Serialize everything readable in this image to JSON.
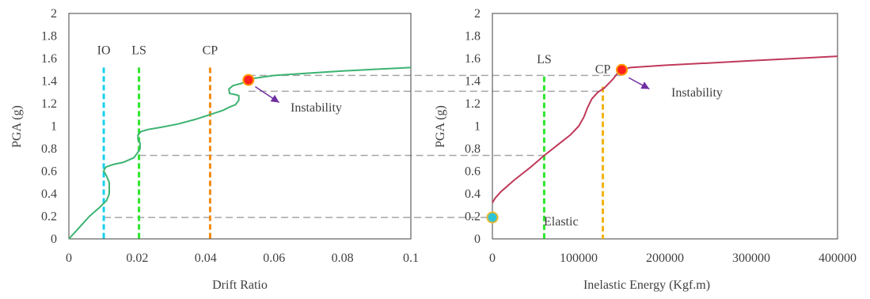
{
  "chart_data": [
    {
      "type": "line",
      "xlabel": "Drift Ratio",
      "ylabel": "PGA (g)",
      "xlim": [
        0,
        0.1
      ],
      "ylim": [
        0,
        2
      ],
      "xticks": [
        0,
        0.02,
        0.04,
        0.06,
        0.08,
        0.1
      ],
      "xtick_labels": [
        "0",
        "0.02",
        "0.04",
        "0.06",
        "0.08",
        "0.1"
      ],
      "yticks": [
        0,
        0.2,
        0.4,
        0.6,
        0.8,
        1,
        1.2,
        1.4,
        1.6,
        1.8,
        2
      ],
      "ytick_labels": [
        "0",
        "0.2",
        "0.4",
        "0.6",
        "0.8",
        "1",
        "1.2",
        "1.4",
        "1.6",
        "1.8",
        "2"
      ],
      "grid": false,
      "series": [
        {
          "color": "#3cb371",
          "x": [
            0,
            0.003,
            0.006,
            0.009,
            0.011,
            0.0118,
            0.0118,
            0.011,
            0.0102,
            0.0104,
            0.011,
            0.013,
            0.016,
            0.019,
            0.02,
            0.0208,
            0.0208,
            0.0202,
            0.0202,
            0.021,
            0.023,
            0.027,
            0.032,
            0.037,
            0.041,
            0.045,
            0.047,
            0.0487,
            0.0497,
            0.0497,
            0.0487,
            0.047,
            0.0468,
            0.048,
            0.0505,
            0.053,
            0.06,
            0.07,
            0.08,
            0.09,
            0.1
          ],
          "y": [
            0,
            0.1,
            0.2,
            0.28,
            0.34,
            0.4,
            0.5,
            0.56,
            0.6,
            0.62,
            0.64,
            0.66,
            0.68,
            0.72,
            0.76,
            0.8,
            0.85,
            0.88,
            0.92,
            0.95,
            0.97,
            0.99,
            1.02,
            1.06,
            1.1,
            1.14,
            1.17,
            1.19,
            1.23,
            1.27,
            1.28,
            1.29,
            1.33,
            1.36,
            1.38,
            1.42,
            1.45,
            1.47,
            1.49,
            1.505,
            1.52
          ]
        }
      ],
      "vlines": [
        {
          "label": "IO",
          "x": 0.0102,
          "y_top": 1.52,
          "color": "#1ad1f0"
        },
        {
          "label": "LS",
          "x": 0.0205,
          "y_top": 1.52,
          "color": "#2ee62e"
        },
        {
          "label": "CP",
          "x": 0.0413,
          "y_top": 1.52,
          "color": "#f28b13"
        }
      ],
      "markers": [
        {
          "x": 0.0525,
          "y": 1.41,
          "fill": "#ff2020",
          "edge": "#ff9900"
        }
      ],
      "annotations": [
        {
          "text": "Instability",
          "arrow_from": [
            0.0545,
            1.35
          ],
          "arrow_to": [
            0.0615,
            1.21
          ],
          "arrow_color": "#7030a0"
        }
      ]
    },
    {
      "type": "line",
      "xlabel": "Inelastic Energy (Kgf.m)",
      "ylabel": "PGA (g)",
      "xlim": [
        0,
        400000
      ],
      "ylim": [
        0,
        2
      ],
      "xticks": [
        0,
        100000,
        200000,
        300000,
        400000
      ],
      "xtick_labels": [
        "0",
        "100000",
        "200000",
        "300000",
        "400000"
      ],
      "yticks": [
        0,
        0.2,
        0.4,
        0.6,
        0.8,
        1,
        1.2,
        1.4,
        1.6,
        1.8,
        2
      ],
      "ytick_labels": [
        "0",
        "0.2",
        "0.4",
        "0.6",
        "0.8",
        "1",
        "1.2",
        "1.4",
        "1.6",
        "1.8",
        "2"
      ],
      "grid": false,
      "series": [
        {
          "color": "#c0395a",
          "x": [
            0,
            3000,
            10000,
            25000,
            45000,
            60000,
            75000,
            90000,
            100000,
            106000,
            110000,
            115000,
            122000,
            130000,
            140000,
            148000,
            160000,
            200000,
            250000,
            300000,
            350000,
            400000
          ],
          "y": [
            0.32,
            0.36,
            0.42,
            0.52,
            0.64,
            0.74,
            0.83,
            0.92,
            1.0,
            1.08,
            1.16,
            1.24,
            1.3,
            1.34,
            1.42,
            1.5,
            1.52,
            1.54,
            1.56,
            1.58,
            1.6,
            1.62
          ]
        }
      ],
      "vlines": [
        {
          "label": "LS",
          "x": 60000,
          "y_top": 1.44,
          "color": "#2ee62e"
        },
        {
          "label": "CP",
          "x": 128000,
          "y_top": 1.35,
          "color": "#f2b313"
        }
      ],
      "markers": [
        {
          "x": 150000,
          "y": 1.5,
          "fill": "#ff2020",
          "edge": "#ff9900"
        },
        {
          "x": 0,
          "y": 0.19,
          "fill": "#2ec4d6",
          "edge": "#e8b830"
        }
      ],
      "annotations": [
        {
          "text": "Instability",
          "arrow_from": [
            158000,
            1.43
          ],
          "arrow_to": [
            182000,
            1.33
          ],
          "arrow_color": "#7030a0"
        },
        {
          "text": "Elastic"
        }
      ]
    }
  ],
  "connectors": [
    {
      "from_panel": 0,
      "from_x": 0.0525,
      "to_panel": 1,
      "to_x": 150000,
      "y": 1.45
    },
    {
      "from_panel": 0,
      "from_x": 0.0525,
      "to_panel": 1,
      "to_x": 128000,
      "y": 1.31
    },
    {
      "from_panel": 0,
      "from_x": 0.0205,
      "to_panel": 1,
      "to_x": 60000,
      "y": 0.74
    },
    {
      "from_panel": 0,
      "from_x": 0.0102,
      "to_panel": 1,
      "to_x": 0,
      "y": 0.19
    }
  ]
}
